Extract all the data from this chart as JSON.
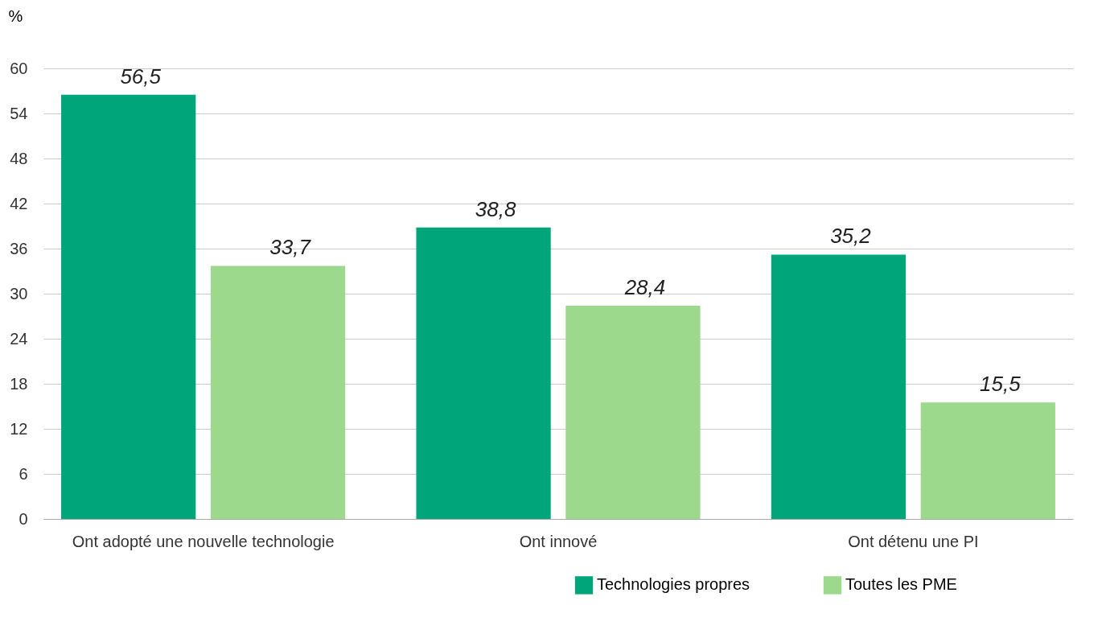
{
  "chart_data": {
    "type": "bar",
    "ylabel": "%",
    "categories": [
      "Ont adopté une nouvelle technologie",
      "Ont innové",
      "Ont détenu une PI"
    ],
    "series": [
      {
        "name": "Technologies propres",
        "color": "#00a67a",
        "values": [
          56.5,
          38.8,
          35.2
        ]
      },
      {
        "name": "Toutes les PME",
        "color": "#9dd98c",
        "values": [
          33.7,
          28.4,
          15.5
        ]
      }
    ],
    "value_labels": [
      [
        "56,5",
        "38,8",
        "35,2"
      ],
      [
        "33,7",
        "28,4",
        "15,5"
      ]
    ],
    "ylim": [
      0,
      60
    ],
    "yticks": [
      0,
      6,
      12,
      18,
      24,
      30,
      36,
      42,
      48,
      54,
      60
    ],
    "grid": "y",
    "legend": "bottom right"
  }
}
